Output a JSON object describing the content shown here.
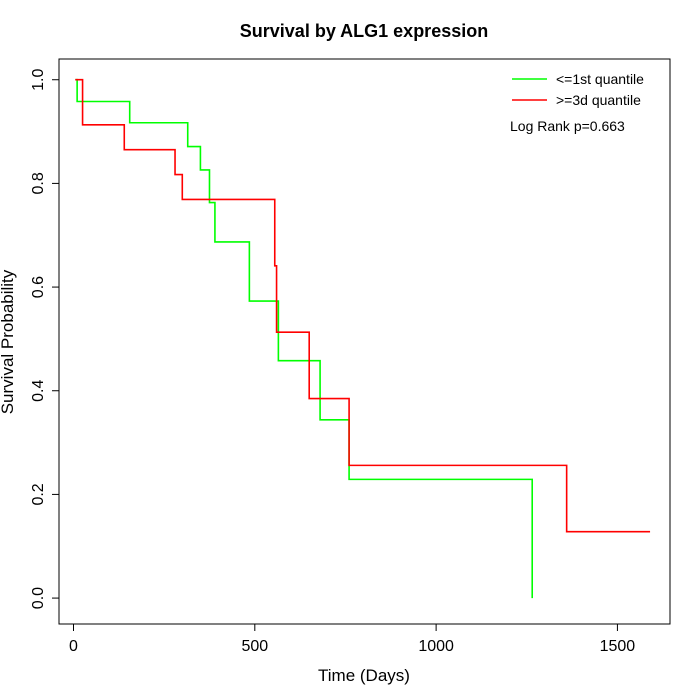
{
  "chart_data": {
    "type": "line",
    "title": "Survival by ALG1 expression",
    "xlabel": "Time (Days)",
    "ylabel": "Survival Probability",
    "xlim": [
      -40,
      1645
    ],
    "ylim": [
      -0.05,
      1.04
    ],
    "xticks": [
      0,
      500,
      1000,
      1500
    ],
    "xtick_labels": [
      "0",
      "500",
      "1000",
      "1500"
    ],
    "yticks": [
      0.0,
      0.2,
      0.4,
      0.6,
      0.8,
      1.0
    ],
    "ytick_labels": [
      "0.0",
      "0.2",
      "0.4",
      "0.6",
      "0.8",
      "1.0"
    ],
    "grid": false,
    "legend_position": "top-right",
    "annotation": "Log Rank p=0.663",
    "series": [
      {
        "name": "<=1st quantile",
        "color": "#00ff00",
        "step": true,
        "x": [
          5,
          10,
          155,
          315,
          350,
          375,
          390,
          485,
          565,
          680,
          760,
          1265,
          1265
        ],
        "y": [
          1.0,
          0.958,
          0.917,
          0.871,
          0.826,
          0.763,
          0.687,
          0.573,
          0.458,
          0.344,
          0.229,
          0.229,
          0.0
        ]
      },
      {
        "name": ">=3d quantile",
        "color": "#ff0000",
        "step": true,
        "x": [
          5,
          25,
          140,
          280,
          300,
          555,
          558,
          560,
          650,
          760,
          1360,
          1590
        ],
        "y": [
          1.0,
          0.913,
          0.865,
          0.817,
          0.769,
          0.641,
          0.641,
          0.513,
          0.385,
          0.256,
          0.128,
          0.128
        ]
      }
    ]
  }
}
